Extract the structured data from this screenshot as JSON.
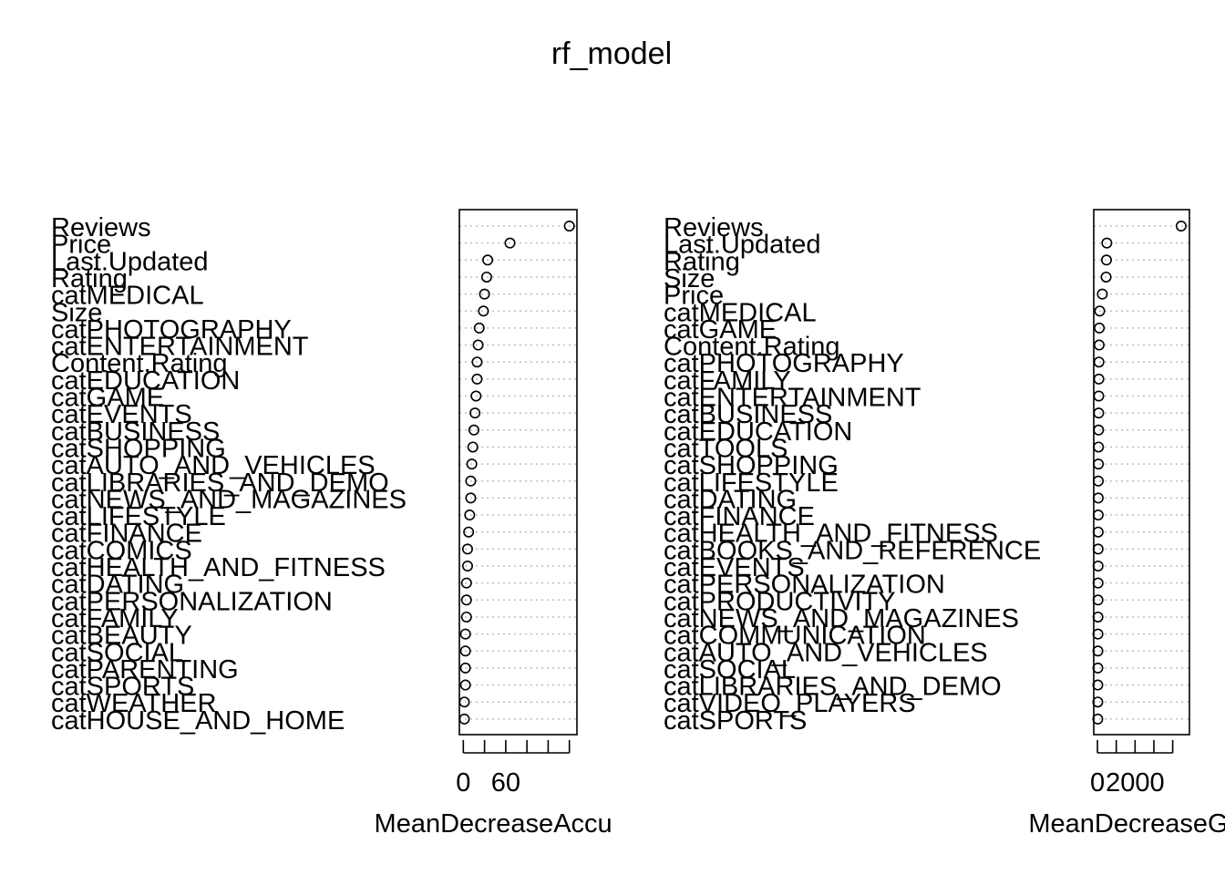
{
  "title": "rf_model",
  "chart_data": [
    {
      "type": "dotchart",
      "xlabel": "MeanDecreaseAccuracy",
      "xlim": [
        -2,
        102
      ],
      "xticks": [
        0,
        20,
        40,
        60,
        80,
        100
      ],
      "xtick_labels": [
        "0",
        "60"
      ],
      "grid": "dotted",
      "categories": [
        "Reviews",
        "Price",
        "Last.Updated",
        "Rating",
        "catMEDICAL",
        "Size",
        "catPHOTOGRAPHY",
        "catENTERTAINMENT",
        "Content.Rating",
        "catEDUCATION",
        "catGAME",
        "catEVENTS",
        "catBUSINESS",
        "catSHOPPING",
        "catAUTO_AND_VEHICLES",
        "catLIBRARIES_AND_DEMO",
        "catNEWS_AND_MAGAZINES",
        "catLIFESTYLE",
        "catFINANCE",
        "catCOMICS",
        "catHEALTH_AND_FITNESS",
        "catDATING",
        "catPERSONALIZATION",
        "catFAMILY",
        "catBEAUTY",
        "catSOCIAL",
        "catPARENTING",
        "catSPORTS",
        "catWEATHER",
        "catHOUSE_AND_HOME"
      ],
      "values": [
        100,
        44,
        23,
        22,
        20,
        19,
        15,
        14,
        13,
        13,
        12,
        11,
        10,
        9,
        8,
        7,
        7,
        6,
        5,
        4,
        4,
        3,
        3,
        3,
        2,
        2,
        2,
        2,
        1,
        1
      ]
    },
    {
      "type": "dotchart",
      "xlabel": "MeanDecreaseGini",
      "xlim": [
        -100,
        4600
      ],
      "xticks": [
        0,
        1000,
        2000,
        3000,
        4000
      ],
      "xtick_labels": [
        "0",
        "2000"
      ],
      "grid": "dotted",
      "categories": [
        "Reviews",
        "Last.Updated",
        "Rating",
        "Size",
        "Price",
        "catMEDICAL",
        "catGAME",
        "Content.Rating",
        "catPHOTOGRAPHY",
        "catFAMILY",
        "catENTERTAINMENT",
        "catBUSINESS",
        "catEDUCATION",
        "catTOOLS",
        "catSHOPPING",
        "catLIFESTYLE",
        "catDATING",
        "catFINANCE",
        "catHEALTH_AND_FITNESS",
        "catBOOKS_AND_REFERENCE",
        "catEVENTS",
        "catPERSONALIZATION",
        "catPRODUCTIVITY",
        "catNEWS_AND_MAGAZINES",
        "catCOMMUNICATION",
        "catAUTO_AND_VEHICLES",
        "catSOCIAL",
        "catLIBRARIES_AND_DEMO",
        "catVIDEO_PLAYERS",
        "catSPORTS"
      ],
      "values": [
        4450,
        500,
        480,
        460,
        260,
        120,
        100,
        90,
        80,
        75,
        70,
        65,
        60,
        55,
        50,
        45,
        42,
        40,
        38,
        36,
        34,
        32,
        30,
        28,
        26,
        24,
        22,
        20,
        18,
        16
      ]
    }
  ]
}
